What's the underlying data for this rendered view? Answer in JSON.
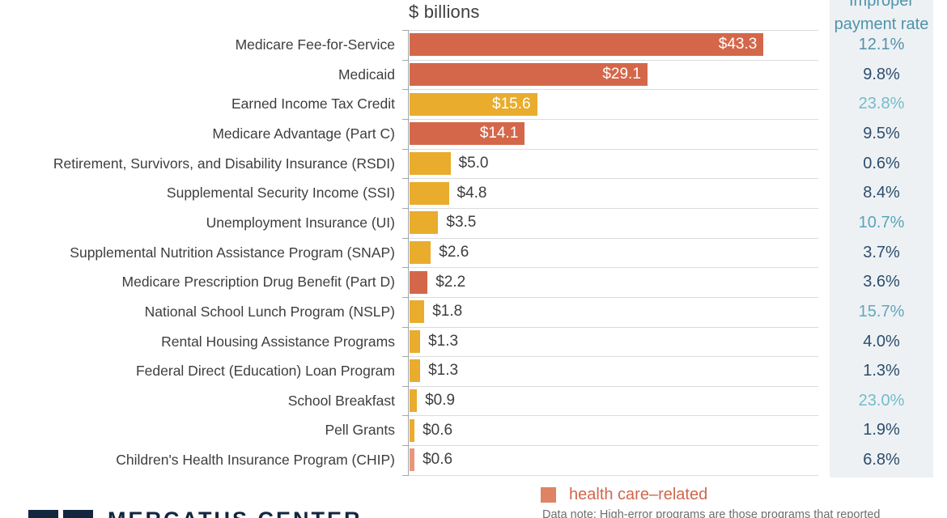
{
  "chart_data": {
    "type": "bar",
    "orientation": "horizontal",
    "unit_label": "$ billions",
    "rate_header": "Improper\npayment rate",
    "xlabel": "$ billions",
    "xlim": [
      0,
      50
    ],
    "grid": "horizontal-row-separators",
    "categories": [
      "Medicare Fee-for-Service",
      "Medicaid",
      "Earned Income Tax Credit",
      "Medicare Advantage (Part C)",
      "Retirement, Survivors, and Disability Insurance (RSDI)",
      "Supplemental Security Income (SSI)",
      "Unemployment Insurance (UI)",
      "Supplemental Nutrition Assistance Program (SNAP)",
      "Medicare Prescription Drug Benefit (Part D)",
      "National School Lunch Program (NSLP)",
      "Rental Housing Assistance Programs",
      "Federal Direct (Education) Loan Program",
      "School Breakfast",
      "Pell Grants",
      "Children's Health Insurance Program (CHIP)"
    ],
    "values": [
      43.3,
      29.1,
      15.6,
      14.1,
      5.0,
      4.8,
      3.5,
      2.6,
      2.2,
      1.8,
      1.3,
      1.3,
      0.9,
      0.6,
      0.6
    ],
    "rows": [
      {
        "label": "Medicare Fee-for-Service",
        "value": 43.3,
        "value_label": "$43.3",
        "bar_color": "#d4674a",
        "value_inside": true,
        "rate": "12.1%",
        "rate_color": "#4f93ab"
      },
      {
        "label": "Medicaid",
        "value": 29.1,
        "value_label": "$29.1",
        "bar_color": "#d4674a",
        "value_inside": true,
        "rate": "9.8%",
        "rate_color": "#2c4d6e"
      },
      {
        "label": "Earned Income Tax Credit",
        "value": 15.6,
        "value_label": "$15.6",
        "bar_color": "#e9ac2d",
        "value_inside": true,
        "rate": "23.8%",
        "rate_color": "#73bccb"
      },
      {
        "label": "Medicare Advantage (Part C)",
        "value": 14.1,
        "value_label": "$14.1",
        "bar_color": "#d4674a",
        "value_inside": true,
        "rate": "9.5%",
        "rate_color": "#2c4d6e"
      },
      {
        "label": "Retirement, Survivors, and Disability Insurance (RSDI)",
        "value": 5.0,
        "value_label": "$5.0",
        "bar_color": "#e9ac2d",
        "value_inside": false,
        "rate": "0.6%",
        "rate_color": "#2c4d6e"
      },
      {
        "label": "Supplemental Security Income (SSI)",
        "value": 4.8,
        "value_label": "$4.8",
        "bar_color": "#e9ac2d",
        "value_inside": false,
        "rate": "8.4%",
        "rate_color": "#2c4d6e"
      },
      {
        "label": "Unemployment Insurance (UI)",
        "value": 3.5,
        "value_label": "$3.5",
        "bar_color": "#e9ac2d",
        "value_inside": false,
        "rate": "10.7%",
        "rate_color": "#58a5ba"
      },
      {
        "label": "Supplemental Nutrition Assistance Program (SNAP)",
        "value": 2.6,
        "value_label": "$2.6",
        "bar_color": "#e9ac2d",
        "value_inside": false,
        "rate": "3.7%",
        "rate_color": "#2c4d6e"
      },
      {
        "label": "Medicare Prescription Drug Benefit (Part D)",
        "value": 2.2,
        "value_label": "$2.2",
        "bar_color": "#d4674a",
        "value_inside": false,
        "rate": "3.6%",
        "rate_color": "#2c4d6e"
      },
      {
        "label": "National School Lunch Program (NSLP)",
        "value": 1.8,
        "value_label": "$1.8",
        "bar_color": "#e9ac2d",
        "value_inside": false,
        "rate": "15.7%",
        "rate_color": "#62a8bc"
      },
      {
        "label": "Rental Housing Assistance Programs",
        "value": 1.3,
        "value_label": "$1.3",
        "bar_color": "#e9ac2d",
        "value_inside": false,
        "rate": "4.0%",
        "rate_color": "#2c4d6e"
      },
      {
        "label": "Federal Direct (Education) Loan Program",
        "value": 1.3,
        "value_label": "$1.3",
        "bar_color": "#e9ac2d",
        "value_inside": false,
        "rate": "1.3%",
        "rate_color": "#2c4d6e"
      },
      {
        "label": "School Breakfast",
        "value": 0.9,
        "value_label": "$0.9",
        "bar_color": "#e9ac2d",
        "value_inside": false,
        "rate": "23.0%",
        "rate_color": "#73bccb"
      },
      {
        "label": "Pell Grants",
        "value": 0.6,
        "value_label": "$0.6",
        "bar_color": "#e9ac2d",
        "value_inside": false,
        "rate": "1.9%",
        "rate_color": "#2c4d6e"
      },
      {
        "label": "Children's Health Insurance Program (CHIP)",
        "value": 0.6,
        "value_label": "$0.6",
        "bar_color": "#e6977e",
        "value_inside": false,
        "rate": "6.8%",
        "rate_color": "#2c4d6e"
      }
    ],
    "legend": {
      "swatch_color": "#df8365",
      "label": "health care–related",
      "position": "bottom"
    }
  },
  "colors": {
    "health_bar": "#d4674a",
    "other_bar": "#e9ac2d",
    "chip_bar": "#e6977e",
    "rate_teal": "#4f93ab",
    "rate_navy": "#2c4d6e",
    "panel_bg": "#eef1f4"
  },
  "footer": {
    "data_note": "Data note: High-error programs are those programs that reported",
    "logo_text": "MERCATUS CENTER"
  }
}
